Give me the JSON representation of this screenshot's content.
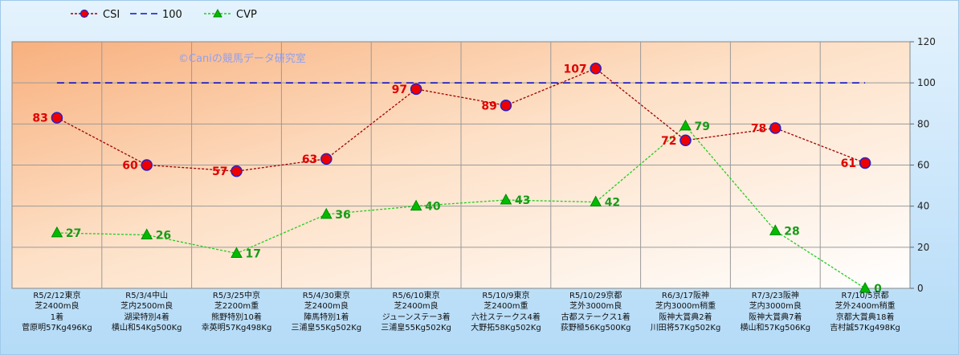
{
  "watermark": "©Caniの競馬データ研究室",
  "legend": [
    {
      "label": "CSI",
      "color": "#a00000",
      "marker": "circle",
      "style": "dotted"
    },
    {
      "label": "100",
      "color": "#1010c8",
      "marker": "none",
      "style": "dashed"
    },
    {
      "label": "CVP",
      "color": "#22cc22",
      "marker": "triangle",
      "style": "dotted"
    }
  ],
  "chart_data": {
    "type": "line",
    "categories": [
      [
        "R5/2/12東京",
        "芝2400m良",
        "1着",
        "菅原明57Kg496Kg"
      ],
      [
        "R5/3/4中山",
        "芝内2500m良",
        "湖梁特別4着",
        "横山和54Kg500Kg"
      ],
      [
        "R5/3/25中京",
        "芝2200m重",
        "熊野特別10着",
        "幸英明57Kg498Kg"
      ],
      [
        "R5/4/30東京",
        "芝2400m良",
        "陣馬特別1着",
        "三浦皇55Kg502Kg"
      ],
      [
        "R5/6/10東京",
        "芝2400m良",
        "ジューンステー3着",
        "三浦皇55Kg502Kg"
      ],
      [
        "R5/10/9東京",
        "芝2400m重",
        "六社ステークス4着",
        "大野拓58Kg502Kg"
      ],
      [
        "R5/10/29京都",
        "芝外3000m良",
        "古都ステークス1着",
        "荻野極56Kg500Kg"
      ],
      [
        "R6/3/17阪神",
        "芝内3000m稍重",
        "阪神大賞典2着",
        "川田将57Kg502Kg"
      ],
      [
        "R7/3/23阪神",
        "芝内3000m良",
        "阪神大賞典7着",
        "横山和57Kg506Kg"
      ],
      [
        "R7/10/5京都",
        "芝外2400m稍重",
        "京都大賞典18着",
        "吉村誠57Kg498Kg"
      ]
    ],
    "series": [
      {
        "name": "CSI",
        "values": [
          83,
          60,
          57,
          63,
          97,
          89,
          107,
          72,
          78,
          61
        ],
        "color": "#a00000",
        "marker_fill": "#ee0000",
        "marker_edge": "#2222cc",
        "label_color": "#e00000"
      },
      {
        "name": "100",
        "values": [
          100,
          100,
          100,
          100,
          100,
          100,
          100,
          100,
          100,
          100
        ],
        "color": "#1010c8"
      },
      {
        "name": "CVP",
        "values": [
          27,
          26,
          17,
          36,
          40,
          43,
          42,
          79,
          28,
          0
        ],
        "color": "#22cc22",
        "marker_fill": "#00bb00",
        "label_color": "#1a9a1a"
      }
    ],
    "ylim": [
      0,
      120
    ],
    "yticks": [
      0,
      20,
      40,
      60,
      80,
      100,
      120
    ],
    "y_axis_position": "right",
    "grid": true,
    "legend_position": "top-left",
    "xlabel": "",
    "ylabel": ""
  }
}
